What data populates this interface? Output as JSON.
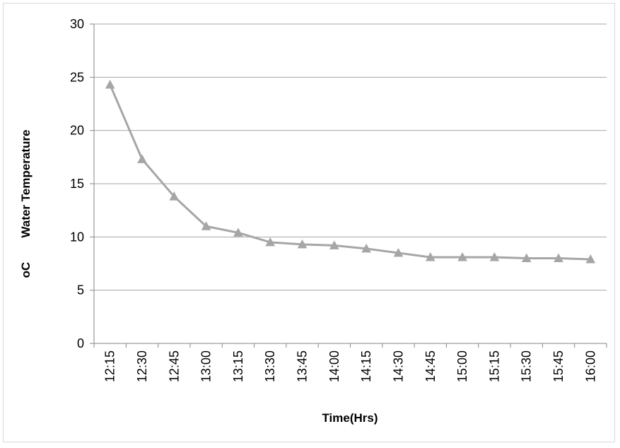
{
  "chart_data": {
    "type": "line",
    "title": "",
    "xlabel": "Time(Hrs)",
    "ylabel_main": "Water Temperature ",
    "ylabel_unit": "oC",
    "ylim": [
      0,
      30
    ],
    "yticks": [
      0,
      5,
      10,
      15,
      20,
      25,
      30
    ],
    "grid": true,
    "legend": "none",
    "categories": [
      "12:15",
      "12:30",
      "12:45",
      "13:00",
      "13:15",
      "13:30",
      "13:45",
      "14:00",
      "14:15",
      "14:30",
      "14:45",
      "15:00",
      "15:15",
      "15:30",
      "15:45",
      "16:00"
    ],
    "series": [
      {
        "values": [
          24.3,
          17.3,
          13.8,
          11.0,
          10.4,
          9.5,
          9.3,
          9.2,
          8.9,
          8.5,
          8.1,
          8.1,
          8.1,
          8.0,
          8.0,
          7.9
        ],
        "color": "#a6a6a6",
        "marker": "triangle"
      }
    ]
  }
}
